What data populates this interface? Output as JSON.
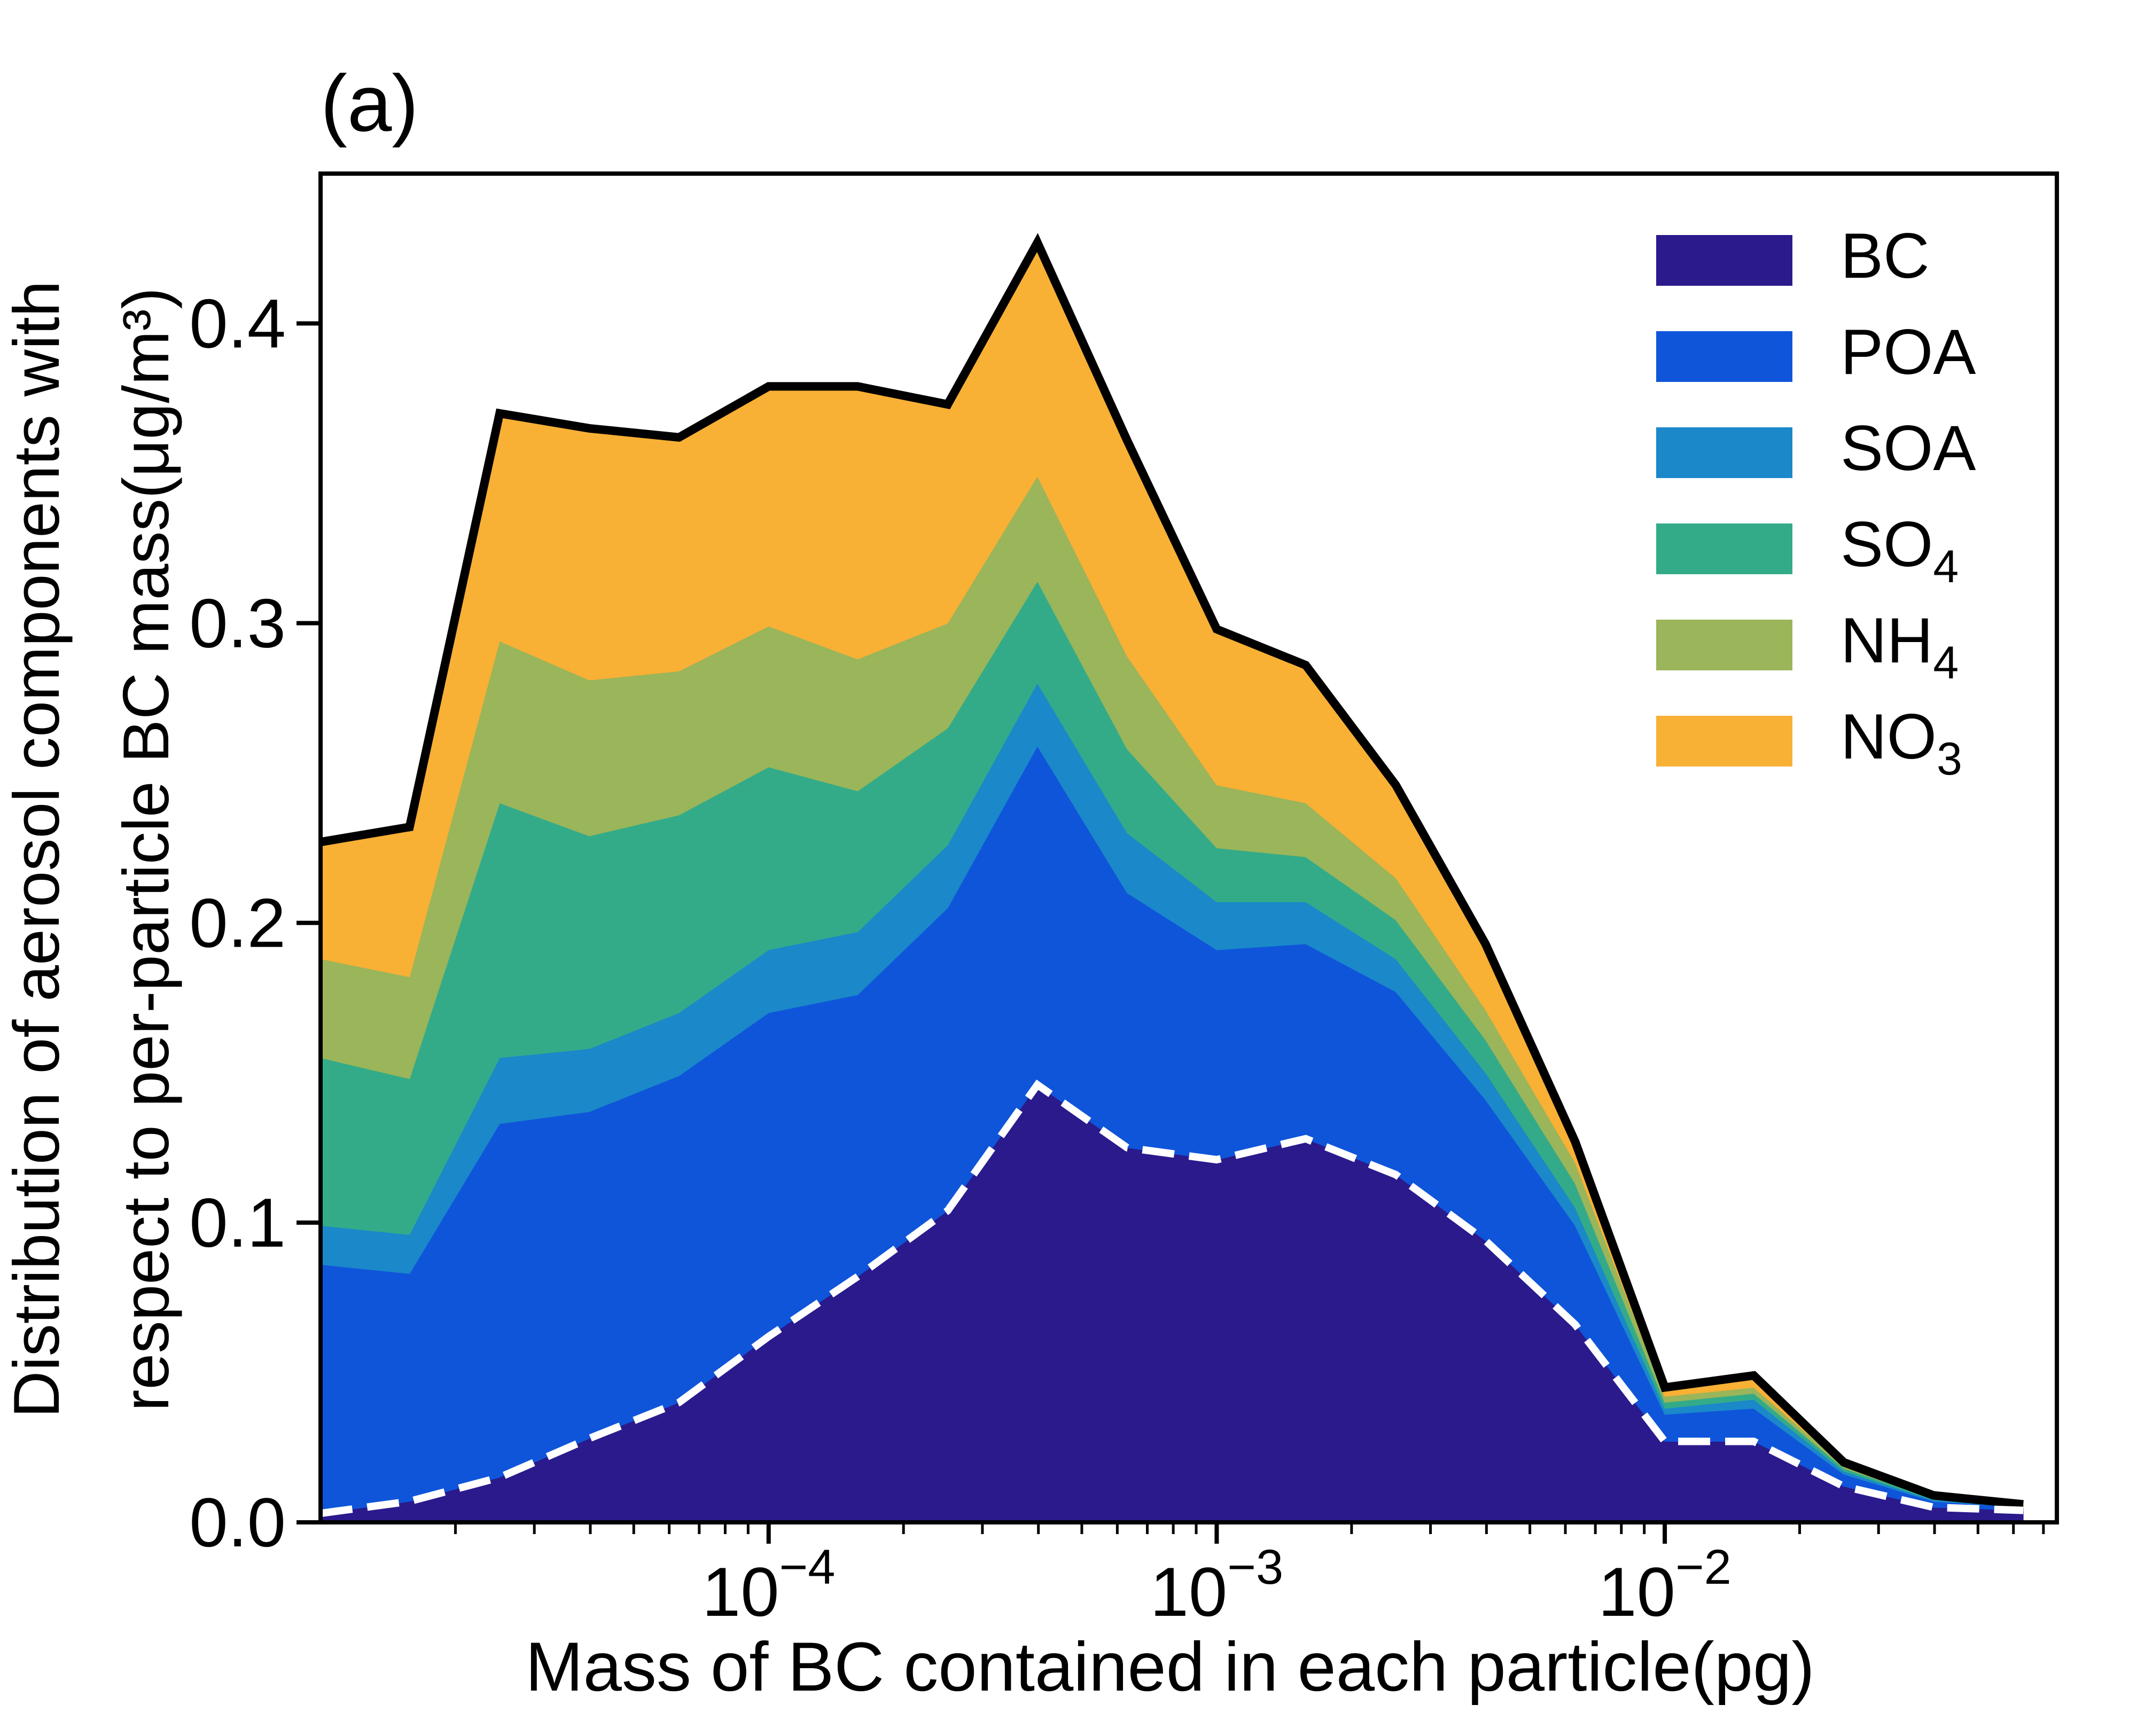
{
  "chart_data": {
    "type": "area",
    "panel_label": "(a)",
    "title": "",
    "xlabel": "Mass of BC contained in each particle(pg)",
    "ylabel_lines": [
      "Distribution of aerosol components with",
      "respect to per-particle BC mass(μg/m³)"
    ],
    "x_scale": "log",
    "xlim": [
      1e-05,
      0.075
    ],
    "ylim": [
      0,
      0.45
    ],
    "x_ticks": [
      {
        "value": 0.0001,
        "base": "10",
        "exp": "−4"
      },
      {
        "value": 0.001,
        "base": "10",
        "exp": "−3"
      },
      {
        "value": 0.01,
        "base": "10",
        "exp": "−2"
      }
    ],
    "y_ticks": [
      {
        "value": 0.0,
        "label": "0.0"
      },
      {
        "value": 0.1,
        "label": "0.1"
      },
      {
        "value": 0.2,
        "label": "0.2"
      },
      {
        "value": 0.3,
        "label": "0.3"
      },
      {
        "value": 0.4,
        "label": "0.4"
      }
    ],
    "legend_position": "upper right",
    "x": [
      1e-05,
      1.58e-05,
      2.51e-05,
      3.98e-05,
      6.31e-05,
      0.0001,
      0.000158,
      0.000251,
      0.000398,
      0.000631,
      0.001,
      0.00158,
      0.00251,
      0.00398,
      0.00631,
      0.01,
      0.0158,
      0.0251,
      0.0398,
      0.0631
    ],
    "series": [
      {
        "name": "BC",
        "sub": "",
        "color": "#2a1a8c",
        "values": [
          0.003,
          0.007,
          0.015,
          0.028,
          0.04,
          0.062,
          0.082,
          0.104,
          0.146,
          0.125,
          0.121,
          0.128,
          0.116,
          0.094,
          0.066,
          0.027,
          0.027,
          0.012,
          0.005,
          0.004
        ]
      },
      {
        "name": "POA",
        "sub": "",
        "color": "#0f55da",
        "values": [
          0.083,
          0.076,
          0.118,
          0.109,
          0.109,
          0.108,
          0.094,
          0.101,
          0.113,
          0.085,
          0.07,
          0.065,
          0.061,
          0.047,
          0.033,
          0.009,
          0.011,
          0.004,
          0.002,
          0.001
        ]
      },
      {
        "name": "SOA",
        "sub": "",
        "color": "#1a88c9",
        "values": [
          0.013,
          0.013,
          0.022,
          0.021,
          0.021,
          0.021,
          0.021,
          0.021,
          0.021,
          0.02,
          0.016,
          0.014,
          0.011,
          0.009,
          0.006,
          0.002,
          0.003,
          0.001,
          0.0005,
          0.0003
        ]
      },
      {
        "name": "SO",
        "sub": "4",
        "color": "#33ab89",
        "values": [
          0.056,
          0.052,
          0.085,
          0.071,
          0.066,
          0.061,
          0.047,
          0.039,
          0.034,
          0.028,
          0.018,
          0.015,
          0.013,
          0.011,
          0.008,
          0.002,
          0.002,
          0.001,
          0.0005,
          0.0003
        ]
      },
      {
        "name": "NH",
        "sub": "4",
        "color": "#9ab55a",
        "values": [
          0.033,
          0.034,
          0.054,
          0.052,
          0.048,
          0.047,
          0.044,
          0.035,
          0.035,
          0.031,
          0.021,
          0.018,
          0.014,
          0.01,
          0.007,
          0.002,
          0.002,
          0.001,
          0.0005,
          0.0003
        ]
      },
      {
        "name": "NO",
        "sub": "3",
        "color": "#f8b035",
        "values": [
          0.039,
          0.05,
          0.076,
          0.084,
          0.078,
          0.08,
          0.091,
          0.073,
          0.078,
          0.072,
          0.052,
          0.046,
          0.031,
          0.022,
          0.007,
          0.003,
          0.004,
          0.001,
          0.0005,
          0.0005
        ]
      }
    ],
    "total_line": {
      "color": "#000000",
      "style": "solid",
      "values": [
        0.227,
        0.232,
        0.37,
        0.365,
        0.362,
        0.379,
        0.379,
        0.373,
        0.427,
        0.361,
        0.298,
        0.286,
        0.246,
        0.193,
        0.127,
        0.045,
        0.049,
        0.02,
        0.009,
        0.006
      ]
    },
    "bc_line": {
      "color": "#ffffff",
      "style": "dashed",
      "values": [
        0.003,
        0.007,
        0.015,
        0.028,
        0.04,
        0.062,
        0.082,
        0.104,
        0.146,
        0.125,
        0.121,
        0.128,
        0.116,
        0.094,
        0.066,
        0.027,
        0.027,
        0.012,
        0.005,
        0.004
      ]
    }
  }
}
